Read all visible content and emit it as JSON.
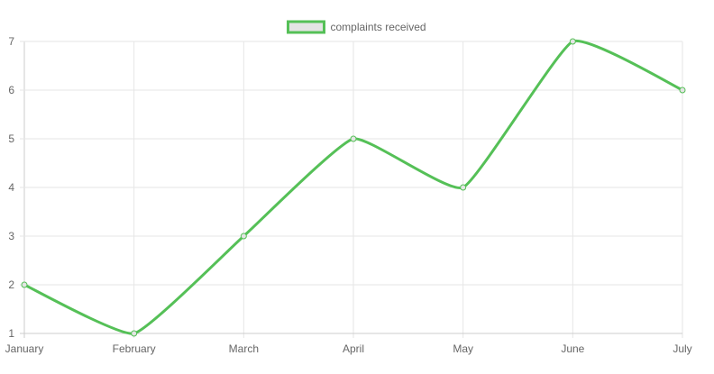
{
  "chart_data": {
    "type": "line",
    "categories": [
      "January",
      "February",
      "March",
      "April",
      "May",
      "June",
      "July"
    ],
    "series": [
      {
        "name": "complaints received",
        "values": [
          2,
          1,
          3,
          5,
          4,
          7,
          6
        ],
        "color": "#55c057"
      }
    ],
    "ylim": [
      1,
      7
    ],
    "yticks": [
      1,
      2,
      3,
      4,
      5,
      6,
      7
    ],
    "grid": true,
    "legend": "top-center",
    "legend_fill": "#e4e4e4"
  }
}
